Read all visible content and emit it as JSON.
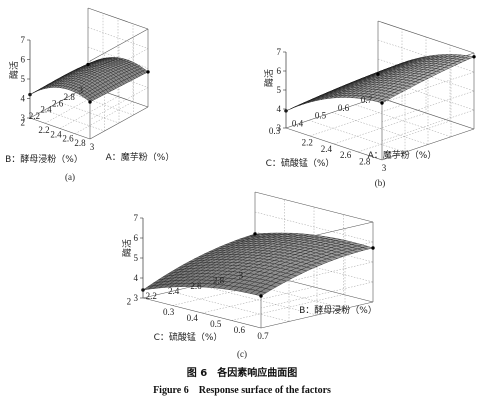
{
  "chart_data": [
    {
      "type": "surface",
      "panel_label": "(a)",
      "zlabel": "酶活",
      "xlabel": "A：魔芋粉（%）",
      "ylabel": "B：酵母浸粉（%）",
      "x_ticks": [
        "2.2",
        "2.4",
        "2.6",
        "2.8",
        "3"
      ],
      "y_ticks": [
        "2",
        "2.2",
        "2.4",
        "2.6",
        "2.8",
        "3"
      ],
      "z_ticks": [
        "3",
        "4",
        "5",
        "6",
        "7"
      ],
      "xlim": [
        2,
        3
      ],
      "ylim": [
        2,
        3
      ],
      "zlim": [
        3,
        7
      ],
      "corner_values": {
        "x2_y2": 4.2,
        "x3_y2": 4.9,
        "x2_y3": 4.1,
        "x3_y3": 4.8,
        "peak": 6.3
      },
      "grid": true
    },
    {
      "type": "surface",
      "panel_label": "(b)",
      "zlabel": "酶活",
      "xlabel": "A：魔芋粉（%）",
      "ylabel": "C：硫酸锰（%）",
      "x_ticks": [
        "2.2",
        "2.4",
        "2.6",
        "2.8",
        "3"
      ],
      "y_ticks": [
        "0.3",
        "0.4",
        "0.5",
        "0.6",
        "0.7"
      ],
      "z_ticks": [
        "3",
        "4",
        "5",
        "6",
        "7"
      ],
      "xlim": [
        2,
        3
      ],
      "ylim": [
        0.3,
        0.7
      ],
      "zlim": [
        3,
        7
      ],
      "corner_values": {
        "x2_y07": 3.9,
        "x3_y07": 6.3,
        "x2_y03": 4.5,
        "x3_y03": 6.2
      },
      "grid": true
    },
    {
      "type": "surface",
      "panel_label": "(c)",
      "zlabel": "酶活",
      "xlabel": "C：硫酸锰（%）",
      "ylabel": "B：酵母浸粉（%）",
      "x_ticks": [
        "0.3",
        "0.4",
        "0.5",
        "0.6",
        "0.7"
      ],
      "y_ticks": [
        "2",
        "2.2",
        "2.4",
        "2.6",
        "2.8",
        "3"
      ],
      "z_ticks": [
        "3",
        "4",
        "5",
        "6",
        "7"
      ],
      "xlim": [
        0.3,
        0.7
      ],
      "ylim": [
        2,
        3
      ],
      "zlim": [
        3,
        7
      ],
      "corner_values": {
        "x07_y2": 3.4,
        "x03_y2": 4.9,
        "x07_y3": 4.6,
        "x03_y3": 5.5,
        "peak": 5.6
      },
      "grid": true
    }
  ],
  "caption": {
    "zh": "图 6　各因素响应曲面图",
    "en": "Figure 6　Response surface of the factors"
  }
}
